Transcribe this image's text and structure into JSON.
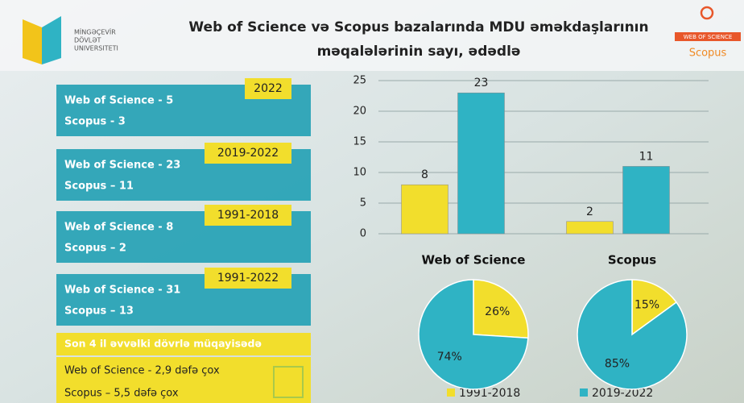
{
  "header": {
    "logo_lines": [
      "MİNGƏÇEVİR",
      "DÖVLƏT",
      "UNIVERSITETI"
    ],
    "title_lines": [
      "Web of Science və Scopus bazalarında MDU əməkdaşlarının",
      "məqalələrinin sayı, ədədlə"
    ],
    "right_logo": [
      "WEB OF SCIENCE",
      "Scopus"
    ]
  },
  "panels": [
    {
      "period": "2022",
      "lines": [
        "Web of Science - 5",
        "Scopus - 3"
      ]
    },
    {
      "period": "2019-2022",
      "lines": [
        "Web of Science  - 23",
        "Scopus – 11"
      ]
    },
    {
      "period": "1991-2018",
      "lines": [
        "Web of Science  - 8",
        "Scopus – 2"
      ]
    },
    {
      "period": "1991-2022",
      "lines": [
        "Web of Science  - 31",
        "Scopus – 13"
      ]
    }
  ],
  "summary": {
    "title": "Son 4 il əvvəlki dövrlə müqayisədə",
    "lines": [
      "Web of Science  - 2,9 dəfə çox",
      "Scopus – 5,5 dəfə çox"
    ]
  },
  "chart_data": [
    {
      "type": "bar",
      "categories": [
        "Web of Science",
        "Scopus"
      ],
      "series": [
        {
          "name": "1991-2018",
          "color": "#f2de2c",
          "values": [
            8,
            2
          ]
        },
        {
          "name": "2019-2022",
          "color": "#2fb3c4",
          "values": [
            23,
            11
          ]
        }
      ],
      "ylim": [
        0,
        25
      ],
      "yticks": [
        0,
        5,
        10,
        15,
        20,
        25
      ],
      "grid": true
    },
    {
      "type": "pie",
      "values": [
        26,
        74
      ],
      "value_labels": [
        "26%",
        "74%"
      ],
      "colors": [
        "#f2de2c",
        "#2fb3c4"
      ]
    },
    {
      "type": "pie",
      "values": [
        15,
        85
      ],
      "value_labels": [
        "15%",
        "85%"
      ],
      "colors": [
        "#f2de2c",
        "#2fb3c4"
      ]
    }
  ]
}
